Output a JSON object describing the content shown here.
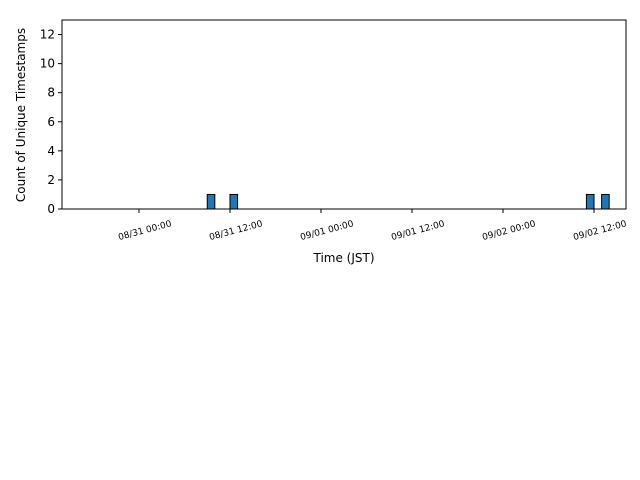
{
  "chart_data": {
    "type": "histogram",
    "xlabel": "Time (JST)",
    "ylabel": "Count of Unique Timestamps",
    "color": "#1f77b4",
    "edgecolor": "#000000",
    "bins": [
      "08/31 09:00",
      "08/31 10:00",
      "08/31 11:00",
      "08/31 12:00",
      "08/31 13:00",
      "08/31 14:00",
      "08/31 15:00",
      "08/31 16:00",
      "08/31 17:00",
      "08/31 18:00",
      "08/31 19:00",
      "08/31 20:00",
      "08/31 21:00",
      "08/31 22:00",
      "08/31 23:00",
      "09/01 00:00",
      "09/01 01:00",
      "09/01 02:00",
      "09/01 03:00",
      "09/01 04:00",
      "09/01 05:00",
      "09/01 06:00",
      "09/01 07:00",
      "09/01 08:00",
      "09/01 09:00",
      "09/01 10:00",
      "09/01 11:00",
      "09/01 12:00",
      "09/01 13:00",
      "09/01 14:00",
      "09/01 15:00",
      "09/01 16:00",
      "09/01 17:00",
      "09/01 18:00",
      "09/01 19:00",
      "09/01 20:00",
      "09/01 21:00",
      "09/01 22:00",
      "09/01 23:00",
      "09/02 00:00",
      "09/02 01:00",
      "09/02 02:00",
      "09/02 03:00",
      "09/02 04:00",
      "09/02 05:00",
      "09/02 06:00",
      "09/02 07:00",
      "09/02 08:00",
      "09/02 09:00",
      "09/02 10:00",
      "09/02 11:00",
      "09/02 12:00",
      "09/02 13:00",
      "09/02 14:00"
    ],
    "values": [
      1,
      0,
      0,
      1,
      0,
      0,
      0,
      0,
      0,
      0,
      0,
      0,
      0,
      0,
      0,
      0,
      0,
      0,
      0,
      0,
      0,
      0,
      0,
      0,
      0,
      0,
      0,
      0,
      0,
      0,
      0,
      0,
      0,
      0,
      0,
      0,
      0,
      0,
      0,
      0,
      0,
      0,
      0,
      0,
      0,
      0,
      0,
      0,
      0,
      0,
      1,
      0,
      1
    ],
    "xlim": [
      "08/30 13:51",
      "09/02 16:13"
    ],
    "xticks": [
      "08/31 00:00",
      "08/31 12:00",
      "09/01 00:00",
      "09/01 12:00",
      "09/02 00:00",
      "09/02 12:00"
    ],
    "ylim": [
      0,
      13
    ],
    "yticks": [
      0,
      2,
      4,
      6,
      8,
      10,
      12
    ]
  }
}
